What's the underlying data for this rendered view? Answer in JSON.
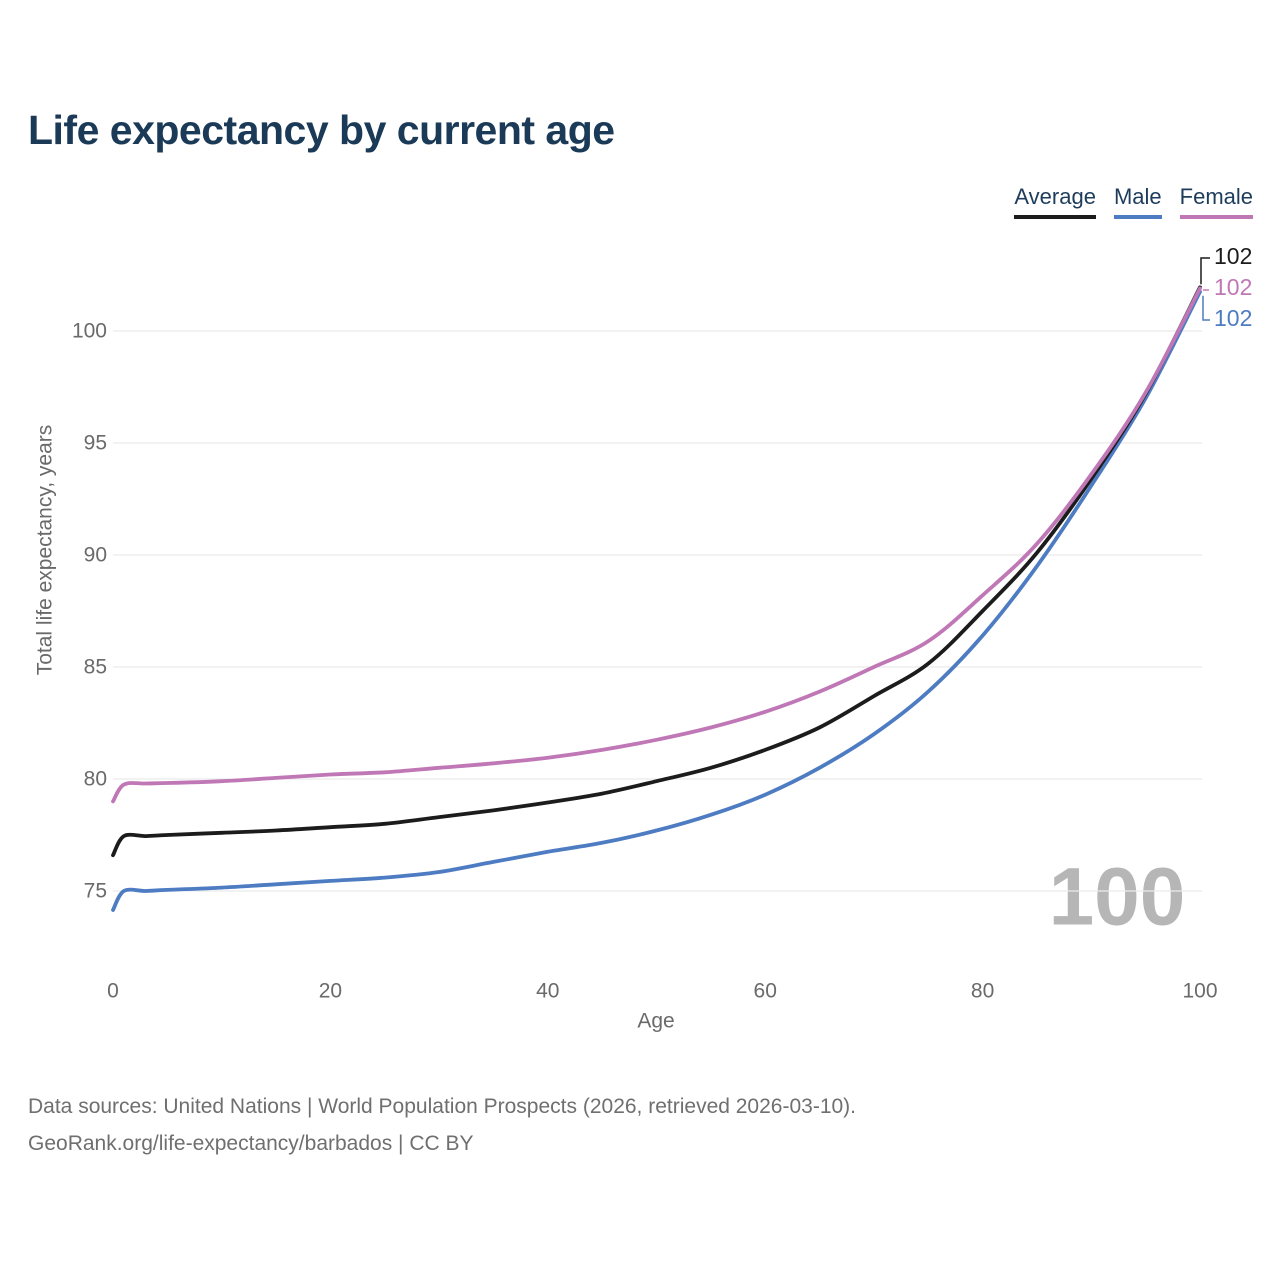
{
  "title": "Life expectancy by current age",
  "legend": [
    {
      "label": "Average",
      "color": "#1c1c1c"
    },
    {
      "label": "Male",
      "color": "#4d7cc2"
    },
    {
      "label": "Female",
      "color": "#c077b6"
    }
  ],
  "watermark": "100",
  "footer": {
    "line1": "Data sources: United Nations | World Population Prospects (2026, retrieved 2026-03-10).",
    "line2": "GeoRank.org/life-expectancy/barbados | CC BY"
  },
  "chart_data": {
    "type": "line",
    "title": "Life expectancy by current age",
    "xlabel": "Age",
    "ylabel": "Total life expectancy, years",
    "xlim": [
      0,
      100
    ],
    "ylim": [
      74,
      102.5
    ],
    "xticks": [
      0,
      20,
      40,
      60,
      80,
      100
    ],
    "yticks": [
      75,
      80,
      85,
      90,
      95,
      100
    ],
    "grid": "horizontal",
    "legend_position": "top-right",
    "x": [
      0,
      1,
      3,
      5,
      10,
      15,
      20,
      25,
      30,
      35,
      40,
      45,
      50,
      55,
      60,
      65,
      70,
      75,
      80,
      85,
      90,
      95,
      100
    ],
    "series": [
      {
        "name": "Average",
        "color": "#1c1c1c",
        "end_label": "102",
        "values": [
          76.6,
          77.45,
          77.45,
          77.5,
          77.6,
          77.7,
          77.85,
          78.0,
          78.3,
          78.6,
          78.95,
          79.35,
          79.9,
          80.5,
          81.3,
          82.3,
          83.7,
          85.15,
          87.5,
          90.1,
          93.4,
          97.2,
          101.95
        ]
      },
      {
        "name": "Male",
        "color": "#4d7cc2",
        "end_label": "102",
        "values": [
          74.15,
          75.0,
          75.0,
          75.05,
          75.15,
          75.3,
          75.45,
          75.6,
          75.85,
          76.3,
          76.75,
          77.15,
          77.7,
          78.4,
          79.3,
          80.5,
          82.0,
          83.9,
          86.4,
          89.5,
          93.1,
          97.0,
          101.75
        ]
      },
      {
        "name": "Female",
        "color": "#c077b6",
        "end_label": "102",
        "values": [
          79.0,
          79.75,
          79.8,
          79.82,
          79.9,
          80.05,
          80.2,
          80.3,
          80.5,
          80.7,
          80.95,
          81.3,
          81.75,
          82.3,
          83.0,
          83.9,
          85.0,
          86.15,
          88.2,
          90.5,
          93.6,
          97.25,
          101.9
        ]
      }
    ]
  }
}
